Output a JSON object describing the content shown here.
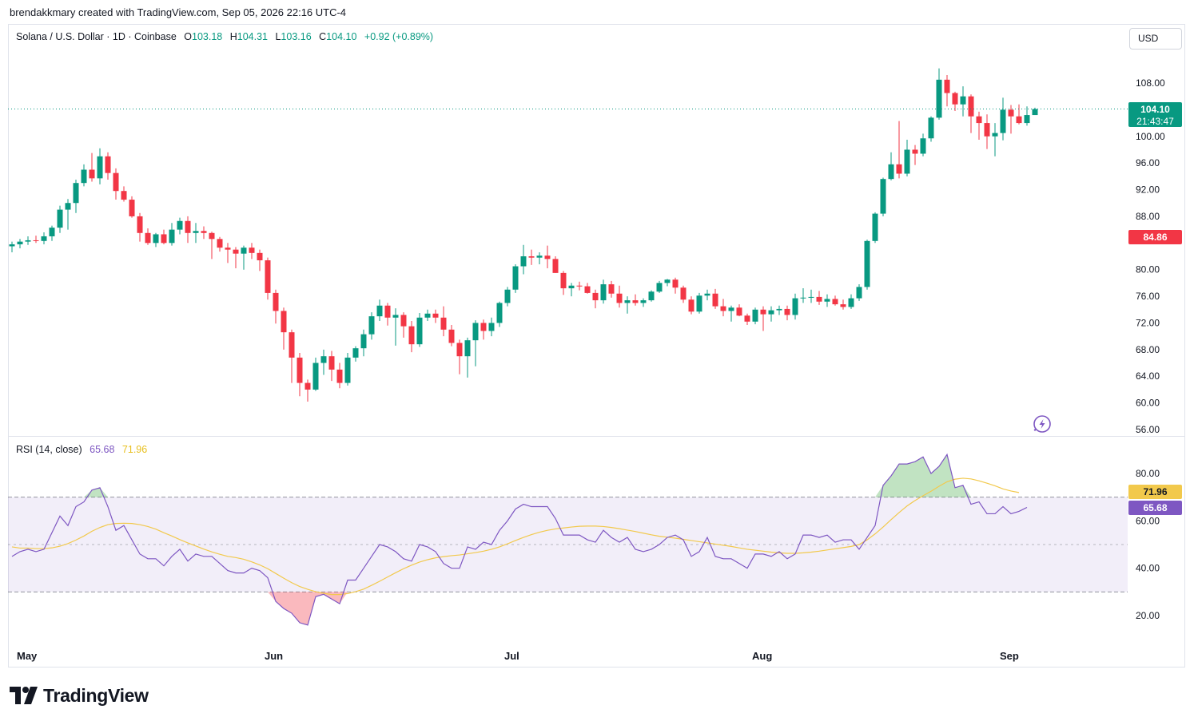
{
  "header": {
    "credit": "brendakkmary created with TradingView.com, Sep 05, 2026 22:16 UTC-4"
  },
  "legend": {
    "symbol": "Solana / U.S. Dollar · 1D · Coinbase",
    "open_label": "O",
    "open": "103.18",
    "high_label": "H",
    "high": "104.31",
    "low_label": "L",
    "low": "103.16",
    "close_label": "C",
    "close": "104.10",
    "change": "+0.92 (+0.89%)"
  },
  "currency_button": "USD",
  "rsi_legend": {
    "label": "RSI (14, close)",
    "rsi": "65.68",
    "ma": "71.96"
  },
  "brand": {
    "name": "TradingView"
  },
  "colors": {
    "up": "#089981",
    "down": "#f23645",
    "rsi": "#7e57c2",
    "rsi_ma": "#f2c94c",
    "band": "#7e57c2"
  },
  "chart_data": [
    {
      "type": "candlestick",
      "title": "Solana / U.S. Dollar · 1D · Coinbase",
      "x": [
        "Apr 30",
        "May 01",
        "May 02",
        "May 03",
        "May 04",
        "May 05",
        "May 06",
        "May 07",
        "May 08",
        "May 09",
        "May 10",
        "May 11",
        "May 12",
        "May 13",
        "May 14",
        "May 15",
        "May 16",
        "May 17",
        "May 18",
        "May 19",
        "May 20",
        "May 21",
        "May 22",
        "May 23",
        "May 24",
        "May 25",
        "May 26",
        "May 27",
        "May 28",
        "May 29",
        "May 30",
        "May 31",
        "Jun 01",
        "Jun 02",
        "Jun 03",
        "Jun 04",
        "Jun 05",
        "Jun 06",
        "Jun 07",
        "Jun 08",
        "Jun 09",
        "Jun 10",
        "Jun 11",
        "Jun 12",
        "Jun 13",
        "Jun 14",
        "Jun 15",
        "Jun 16",
        "Jun 17",
        "Jun 18",
        "Jun 19",
        "Jun 20",
        "Jun 21",
        "Jun 22",
        "Jun 23",
        "Jun 24",
        "Jun 25",
        "Jun 26",
        "Jun 27",
        "Jun 28",
        "Jun 29",
        "Jun 30",
        "Jul 01",
        "Jul 02",
        "Jul 03",
        "Jul 04",
        "Jul 05",
        "Jul 06",
        "Jul 07",
        "Jul 08",
        "Jul 09",
        "Jul 10",
        "Jul 11",
        "Jul 12",
        "Jul 13",
        "Jul 14",
        "Jul 15",
        "Jul 16",
        "Jul 17",
        "Jul 18",
        "Jul 19",
        "Jul 20",
        "Jul 21",
        "Jul 22",
        "Jul 23",
        "Jul 24",
        "Jul 25",
        "Jul 26",
        "Jul 27",
        "Jul 28",
        "Jul 29",
        "Jul 30",
        "Jul 31",
        "Aug 01",
        "Aug 02",
        "Aug 03",
        "Aug 04",
        "Aug 05",
        "Aug 06",
        "Aug 07",
        "Aug 08",
        "Aug 09",
        "Aug 10",
        "Aug 11",
        "Aug 12",
        "Aug 13",
        "Aug 14",
        "Aug 15",
        "Aug 16",
        "Aug 17",
        "Aug 18",
        "Aug 19",
        "Aug 20",
        "Aug 21",
        "Aug 22",
        "Aug 23",
        "Aug 24",
        "Aug 25",
        "Aug 26",
        "Aug 27",
        "Aug 28",
        "Aug 29",
        "Aug 30",
        "Aug 31",
        "Sep 01",
        "Sep 02",
        "Sep 03",
        "Sep 04",
        "Sep 05"
      ],
      "open": [
        83.5,
        83.8,
        84.2,
        84.4,
        84.3,
        85.0,
        86.3,
        89.0,
        90.0,
        93.0,
        95.0,
        93.7,
        97.0,
        94.5,
        91.8,
        90.5,
        88.0,
        85.5,
        84.0,
        85.3,
        84.0,
        86.0,
        87.3,
        85.5,
        85.8,
        85.5,
        84.6,
        83.3,
        83.0,
        82.4,
        83.3,
        82.5,
        81.4,
        76.5,
        73.8,
        70.6,
        66.8,
        63.0,
        62.0,
        66.0,
        67.0,
        65.0,
        63.0,
        66.8,
        68.2,
        70.3,
        73.0,
        74.6,
        72.8,
        73.2,
        71.5,
        68.8,
        72.8,
        73.4,
        72.8,
        71.0,
        69.0,
        67.0,
        69.4,
        72.0,
        70.8,
        72.0,
        75.0,
        77.0,
        80.5,
        82.0,
        81.8,
        82.1,
        81.6,
        79.5,
        77.2,
        77.6,
        77.5,
        76.5,
        75.4,
        77.8,
        76.4,
        75.0,
        75.4,
        75.0,
        75.4,
        76.7,
        78.0,
        78.5,
        77.3,
        75.5,
        73.7,
        76.1,
        76.4,
        74.5,
        73.8,
        74.3,
        73.1,
        72.2,
        74.0,
        73.3,
        73.9,
        74.1,
        73.2,
        75.7,
        75.8,
        75.9,
        75.2,
        75.6,
        74.8,
        74.4,
        75.7,
        77.4,
        84.3,
        88.4,
        93.6,
        95.8,
        94.4,
        98.0,
        97.4,
        99.7,
        102.8,
        108.5,
        106.5,
        104.8,
        106.0,
        103.0,
        102.0,
        100.0,
        100.5,
        104.0,
        103.0,
        102.0,
        103.2
      ],
      "high": [
        84.2,
        84.6,
        85.0,
        85.1,
        85.6,
        86.6,
        89.6,
        90.6,
        93.5,
        95.8,
        97.5,
        98.2,
        97.6,
        95.2,
        92.5,
        91.0,
        88.5,
        86.2,
        85.5,
        86.0,
        87.0,
        87.8,
        88.0,
        87.0,
        86.5,
        85.7,
        84.9,
        84.0,
        83.4,
        83.6,
        84.0,
        83.0,
        81.8,
        77.0,
        74.3,
        71.0,
        67.5,
        63.5,
        66.8,
        68.0,
        67.8,
        66.0,
        67.5,
        68.5,
        71.0,
        73.6,
        75.5,
        75.0,
        74.2,
        73.6,
        72.3,
        73.5,
        74.0,
        74.0,
        74.5,
        71.7,
        69.5,
        69.8,
        72.4,
        72.5,
        72.8,
        75.2,
        77.4,
        80.8,
        83.7,
        83.0,
        82.6,
        83.6,
        82.0,
        79.8,
        78.0,
        78.2,
        78.0,
        77.0,
        78.5,
        78.3,
        77.6,
        76.0,
        76.3,
        75.7,
        76.9,
        78.3,
        78.6,
        78.8,
        77.6,
        76.0,
        76.5,
        77.0,
        77.1,
        75.6,
        74.6,
        74.8,
        73.4,
        74.3,
        74.5,
        74.5,
        74.6,
        74.6,
        76.4,
        77.2,
        77.0,
        76.8,
        76.3,
        76.1,
        75.5,
        76.3,
        77.8,
        84.5,
        88.6,
        93.8,
        97.6,
        102.3,
        99.5,
        98.7,
        100.4,
        103.0,
        110.2,
        109.2,
        106.7,
        107.5,
        106.3,
        103.7,
        103.3,
        102.0,
        105.8,
        104.7,
        104.8,
        104.5,
        104.3
      ],
      "low": [
        82.6,
        83.2,
        83.7,
        84.0,
        83.8,
        84.3,
        85.5,
        86.0,
        88.5,
        92.5,
        93.2,
        92.8,
        93.5,
        90.5,
        90.2,
        87.8,
        84.2,
        83.7,
        83.4,
        83.8,
        83.6,
        85.3,
        84.0,
        84.0,
        84.6,
        81.6,
        82.7,
        81.0,
        80.2,
        80.0,
        81.6,
        79.8,
        75.5,
        71.9,
        68.0,
        63.0,
        61.0,
        60.2,
        61.8,
        64.2,
        63.3,
        62.2,
        62.6,
        66.2,
        67.0,
        69.5,
        72.3,
        71.6,
        68.6,
        69.8,
        67.6,
        68.4,
        72.3,
        72.0,
        70.0,
        68.5,
        64.3,
        63.8,
        65.5,
        69.5,
        70.0,
        71.4,
        74.5,
        76.5,
        79.3,
        80.7,
        80.8,
        80.2,
        79.5,
        76.2,
        76.0,
        76.9,
        76.4,
        74.2,
        74.9,
        75.8,
        74.3,
        73.4,
        74.6,
        74.4,
        75.2,
        76.5,
        77.5,
        76.4,
        75.0,
        73.3,
        73.4,
        75.4,
        74.1,
        73.0,
        72.2,
        73.0,
        71.7,
        71.8,
        70.8,
        72.2,
        73.2,
        72.4,
        72.5,
        75.0,
        75.0,
        74.7,
        74.4,
        74.6,
        74.0,
        74.1,
        75.3,
        77.0,
        84.0,
        88.0,
        93.4,
        93.7,
        94.0,
        95.7,
        97.0,
        99.2,
        102.5,
        104.5,
        103.8,
        103.0,
        100.5,
        99.5,
        98.1,
        97.0,
        99.4,
        100.4,
        101.8,
        101.6,
        103.2
      ],
      "close": [
        83.8,
        84.2,
        84.4,
        84.3,
        85.0,
        86.3,
        89.0,
        90.0,
        93.0,
        95.0,
        93.7,
        97.0,
        94.5,
        91.8,
        90.5,
        88.0,
        85.5,
        84.0,
        85.3,
        84.0,
        86.0,
        87.3,
        85.5,
        85.8,
        85.5,
        84.6,
        83.3,
        83.0,
        82.4,
        83.3,
        82.5,
        81.4,
        76.5,
        73.8,
        70.6,
        66.8,
        63.0,
        62.0,
        66.0,
        67.0,
        65.0,
        63.0,
        66.8,
        68.2,
        70.3,
        73.0,
        74.6,
        72.8,
        73.2,
        71.5,
        68.8,
        72.8,
        73.4,
        72.8,
        71.0,
        69.0,
        67.0,
        69.4,
        72.0,
        70.8,
        72.0,
        75.0,
        77.0,
        80.5,
        82.0,
        81.8,
        82.1,
        81.6,
        79.5,
        77.2,
        77.6,
        77.5,
        76.5,
        75.4,
        77.8,
        76.4,
        75.0,
        75.4,
        75.0,
        75.4,
        76.7,
        78.0,
        78.5,
        77.3,
        75.5,
        73.7,
        76.1,
        76.4,
        74.5,
        73.8,
        74.3,
        73.1,
        72.2,
        74.0,
        73.3,
        73.9,
        74.1,
        73.2,
        75.7,
        75.8,
        75.9,
        75.2,
        75.6,
        74.8,
        74.4,
        75.7,
        77.4,
        84.3,
        88.4,
        93.6,
        95.8,
        94.4,
        98.0,
        97.4,
        99.7,
        102.8,
        108.5,
        106.5,
        104.8,
        106.0,
        103.0,
        102.0,
        100.0,
        100.5,
        104.0,
        103.0,
        102.0,
        103.2,
        104.1
      ],
      "y_ticks": [
        "108.00",
        "100.00",
        "96.00",
        "92.00",
        "88.00",
        "80.00",
        "76.00",
        "72.00",
        "68.00",
        "64.00",
        "60.00",
        "56.00"
      ],
      "ylim": [
        55.5,
        112
      ],
      "last_price_label": {
        "price": "104.10",
        "countdown": "21:43:47"
      },
      "marked_price_label": "84.86",
      "x_labels": [
        "May",
        "Jun",
        "Jul",
        "Aug",
        "Sep"
      ]
    },
    {
      "type": "line",
      "title": "RSI (14, close)",
      "series": [
        {
          "name": "RSI",
          "values": [
            45,
            47,
            48,
            47,
            48,
            55,
            62,
            58,
            66,
            68,
            73,
            74,
            66,
            56,
            58,
            52,
            46,
            44,
            44,
            41,
            45,
            48,
            43,
            46,
            45,
            45,
            42,
            39,
            38,
            38,
            40,
            39,
            36,
            26,
            23,
            21,
            17,
            16,
            28,
            29,
            27,
            25,
            35,
            35,
            40,
            45,
            50,
            49,
            47,
            44,
            43,
            50,
            49,
            47,
            42,
            40,
            40,
            49,
            48,
            51,
            50,
            56,
            60,
            65,
            67,
            66,
            66,
            66,
            61,
            54,
            54,
            54,
            52,
            51,
            56,
            53,
            51,
            53,
            48,
            47,
            48,
            50,
            53,
            54,
            52,
            45,
            47,
            53,
            45,
            44,
            44,
            42,
            40,
            46,
            46,
            45,
            47,
            44,
            46,
            54,
            54,
            53,
            54,
            51,
            52,
            52,
            48,
            53,
            58,
            75,
            79,
            84,
            84,
            85,
            87,
            80,
            83,
            88,
            74,
            75,
            67,
            68,
            63,
            63,
            66,
            63,
            64,
            65.68
          ]
        },
        {
          "name": "RSI-based MA",
          "values": [
            49,
            48.5,
            48.5,
            48.3,
            48.3,
            48.6,
            49.3,
            50.4,
            51.9,
            53.6,
            55.6,
            57.2,
            58.4,
            58.9,
            59.0,
            58.9,
            58.4,
            57.6,
            56.5,
            55.0,
            53.6,
            52.1,
            50.7,
            49.4,
            48.1,
            46.9,
            45.9,
            45.0,
            44.5,
            43.8,
            42.7,
            41.4,
            39.8,
            37.8,
            35.8,
            33.9,
            32.3,
            31.1,
            30.1,
            29.4,
            28.9,
            28.9,
            29.3,
            30.1,
            31.2,
            32.8,
            34.5,
            36.3,
            38.1,
            39.8,
            41.3,
            42.6,
            43.6,
            44.4,
            44.9,
            45.3,
            45.6,
            46.1,
            46.6,
            47.2,
            48.0,
            49.0,
            50.3,
            51.7,
            53.0,
            54.2,
            55.2,
            56.0,
            56.6,
            57.0,
            57.4,
            57.7,
            57.8,
            57.8,
            57.6,
            57.2,
            56.7,
            56.1,
            55.5,
            54.8,
            54.1,
            53.5,
            53.1,
            52.7,
            52.2,
            51.7,
            51.2,
            50.7,
            50.2,
            49.7,
            49.2,
            48.6,
            48.0,
            47.6,
            47.2,
            46.8,
            46.5,
            46.3,
            46.3,
            46.5,
            46.8,
            47.2,
            47.7,
            48.2,
            48.7,
            49.2,
            50.0,
            52.0,
            54.5,
            57.4,
            60.5,
            63.5,
            66.3,
            68.6,
            70.6,
            72.5,
            74.6,
            76.5,
            77.6,
            78.0,
            77.7,
            76.9,
            75.9,
            74.8,
            73.5,
            72.6,
            71.96
          ]
        }
      ],
      "y_ticks": [
        "80.00",
        "60.00",
        "40.00",
        "20.00"
      ],
      "ylim": [
        10,
        100
      ],
      "band": [
        30,
        70
      ],
      "midline": 50,
      "value_labels": [
        "71.96",
        "65.68"
      ]
    }
  ]
}
